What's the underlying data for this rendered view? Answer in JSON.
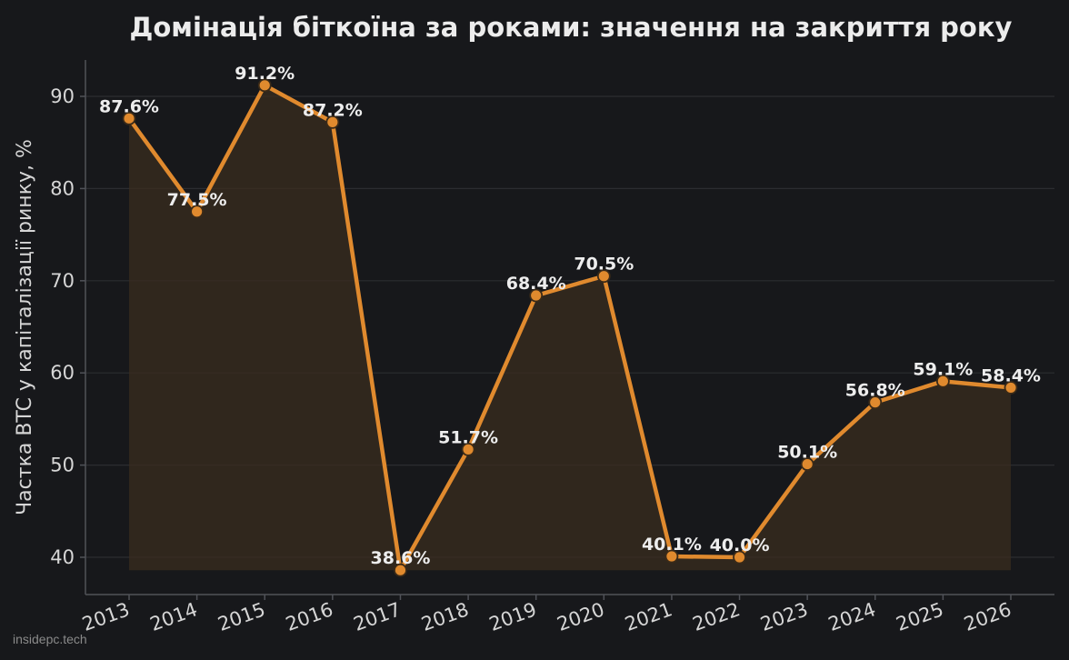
{
  "colors": {
    "background": "#17181b",
    "line": "#e08a2e",
    "marker_fill": "#e08a2e",
    "marker_edge": "#3a2a18",
    "area_fill": "#3a2c1f",
    "grid": "#2c2d31",
    "axis": "#505258",
    "text": "#d6d6d6"
  },
  "watermark": "insidepc.tech",
  "chart_data": {
    "type": "line",
    "title": "Домінація біткоїна за роками: значення на закриття року",
    "xlabel": "",
    "ylabel": "Частка BTC у капіталізації ринку, %",
    "categories": [
      "2013",
      "2014",
      "2015",
      "2016",
      "2017",
      "2018",
      "2019",
      "2020",
      "2021",
      "2022",
      "2023",
      "2024",
      "2025",
      "2026"
    ],
    "values": [
      87.6,
      77.5,
      91.2,
      87.2,
      38.6,
      51.7,
      68.4,
      70.5,
      40.1,
      40.0,
      50.1,
      56.8,
      59.1,
      58.4
    ],
    "data_labels": [
      "87.6%",
      "77.5%",
      "91.2%",
      "87.2%",
      "38.6%",
      "51.7%",
      "68.4%",
      "70.5%",
      "40.1%",
      "40.0%",
      "50.1%",
      "56.8%",
      "59.1%",
      "58.4%"
    ],
    "yticks": [
      40,
      50,
      60,
      70,
      80,
      90
    ],
    "ylim": [
      36,
      94
    ],
    "grid": true,
    "area_fill": true,
    "x_tick_rotation": "rotated"
  }
}
